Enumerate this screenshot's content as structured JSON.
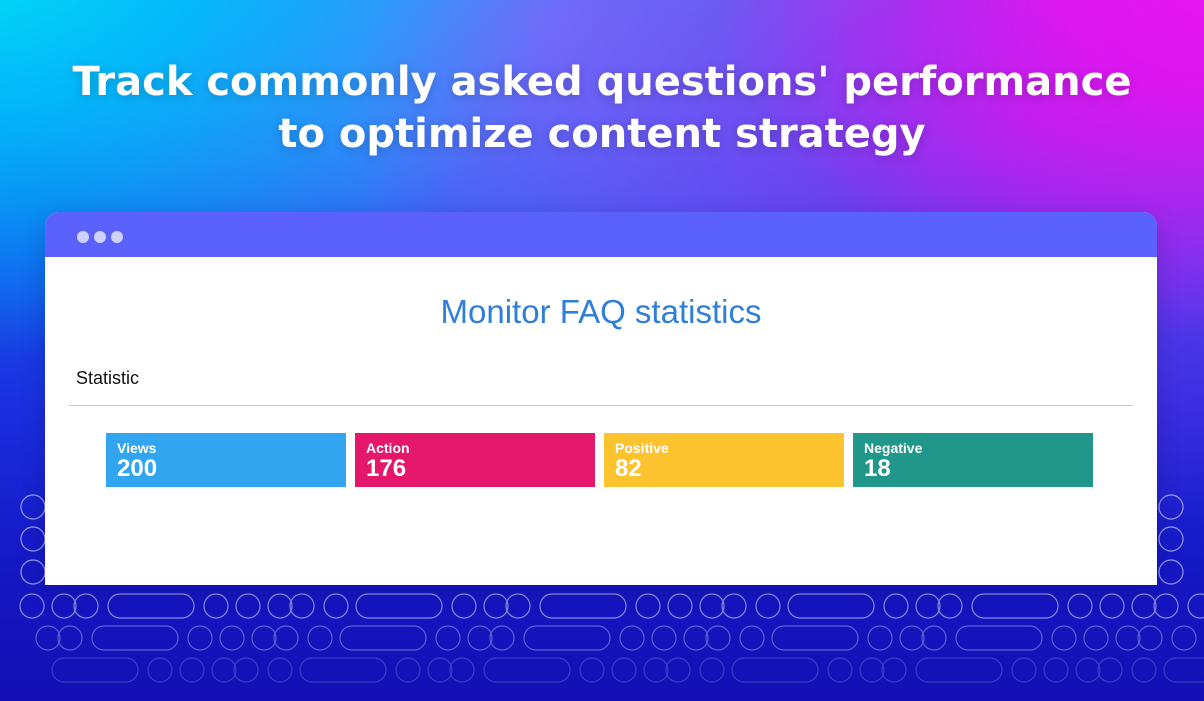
{
  "headline": {
    "line1": "Track commonly asked questions' performance",
    "line2": "to optimize content strategy"
  },
  "window": {
    "title_dots": [
      "dot",
      "dot",
      "dot"
    ],
    "panel_title": "Monitor FAQ statistics",
    "section_label": "Statistic",
    "stats": [
      {
        "label": "Views",
        "value": "200",
        "color": "#31a5f0"
      },
      {
        "label": "Action",
        "value": "176",
        "color": "#e5176a"
      },
      {
        "label": "Positive",
        "value": "82",
        "color": "#fcc32e"
      },
      {
        "label": "Negative",
        "value": "18",
        "color": "#20978a"
      }
    ]
  },
  "colors": {
    "titlebar": "#5a62fb",
    "panel_title": "#2d7fd8"
  }
}
